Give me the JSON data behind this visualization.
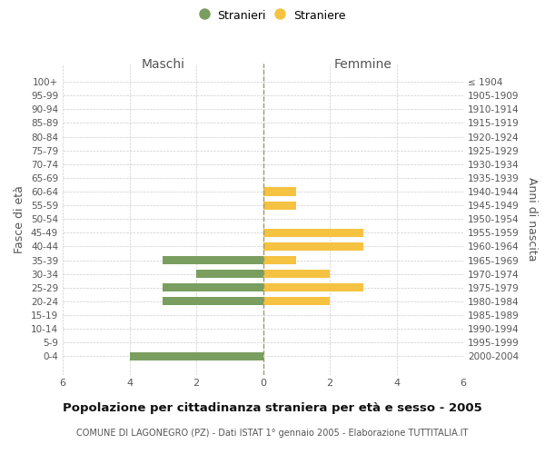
{
  "age_groups": [
    "100+",
    "95-99",
    "90-94",
    "85-89",
    "80-84",
    "75-79",
    "70-74",
    "65-69",
    "60-64",
    "55-59",
    "50-54",
    "45-49",
    "40-44",
    "35-39",
    "30-34",
    "25-29",
    "20-24",
    "15-19",
    "10-14",
    "5-9",
    "0-4"
  ],
  "birth_years": [
    "≤ 1904",
    "1905-1909",
    "1910-1914",
    "1915-1919",
    "1920-1924",
    "1925-1929",
    "1930-1934",
    "1935-1939",
    "1940-1944",
    "1945-1949",
    "1950-1954",
    "1955-1959",
    "1960-1964",
    "1965-1969",
    "1970-1974",
    "1975-1979",
    "1980-1984",
    "1985-1989",
    "1990-1994",
    "1995-1999",
    "2000-2004"
  ],
  "maschi": [
    0,
    0,
    0,
    0,
    0,
    0,
    0,
    0,
    0,
    0,
    0,
    0,
    0,
    3,
    2,
    3,
    3,
    0,
    0,
    0,
    4
  ],
  "femmine": [
    0,
    0,
    0,
    0,
    0,
    0,
    0,
    0,
    1,
    1,
    0,
    3,
    3,
    1,
    2,
    3,
    2,
    0,
    0,
    0,
    0
  ],
  "color_maschi": "#7a9e5f",
  "color_femmine": "#f5c242",
  "background_color": "#ffffff",
  "grid_color": "#cccccc",
  "center_line_color": "#999966",
  "title": "Popolazione per cittadinanza straniera per età e sesso - 2005",
  "subtitle": "COMUNE DI LAGONEGRO (PZ) - Dati ISTAT 1° gennaio 2005 - Elaborazione TUTTITALIA.IT",
  "ylabel_left": "Fasce di età",
  "ylabel_right": "Anni di nascita",
  "header_left": "Maschi",
  "header_right": "Femmine",
  "legend_stranieri": "Stranieri",
  "legend_straniere": "Straniere",
  "xlim": 6
}
